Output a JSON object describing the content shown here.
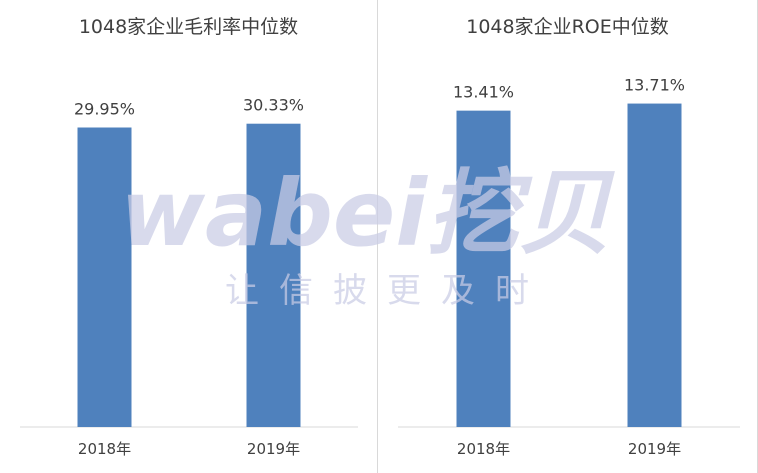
{
  "chart_data": [
    {
      "type": "bar",
      "title": "1048家企业毛利率中位数",
      "categories": [
        "2018年",
        "2019年"
      ],
      "values": [
        29.95,
        30.33
      ],
      "value_labels": [
        "29.95%",
        "30.33%"
      ],
      "xlabel": "",
      "ylabel": "",
      "ylim": [
        0,
        40
      ],
      "grid": false,
      "legend": "none",
      "bar_color": "#4f81bd"
    },
    {
      "type": "bar",
      "title": "1048家企业ROE中位数",
      "categories": [
        "2018年",
        "2019年"
      ],
      "values": [
        13.41,
        13.71
      ],
      "value_labels": [
        "13.41%",
        "13.71%"
      ],
      "xlabel": "",
      "ylabel": "",
      "ylim": [
        0,
        18.1
      ],
      "grid": false,
      "legend": "none",
      "bar_color": "#4f81bd"
    }
  ],
  "watermark": {
    "logo_text": "wabei挖贝",
    "slogan": "让信披更及时",
    "color": "#c9cce4"
  }
}
